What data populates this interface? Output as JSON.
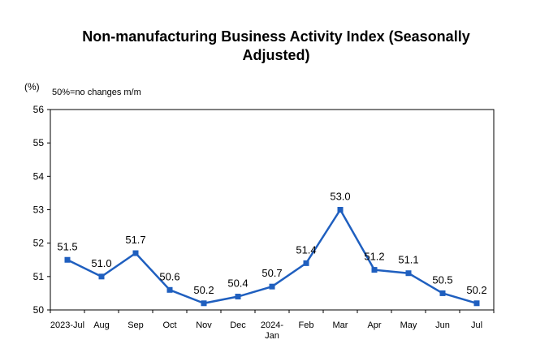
{
  "chart_data": {
    "type": "line",
    "title": "Non-manufacturing Business Activity Index (Seasonally Adjusted)",
    "ylabel": "(%)",
    "annotation": "50%=no changes m/m",
    "ylim": [
      50,
      56
    ],
    "yticks": [
      50,
      51,
      52,
      53,
      54,
      55,
      56
    ],
    "grid": false,
    "categories": [
      [
        "2023-Jul"
      ],
      [
        "Aug"
      ],
      [
        "Sep"
      ],
      [
        "Oct"
      ],
      [
        "Nov"
      ],
      [
        "Dec"
      ],
      [
        "2024-",
        "Jan"
      ],
      [
        "Feb"
      ],
      [
        "Mar"
      ],
      [
        "Apr"
      ],
      [
        "May"
      ],
      [
        "Jun"
      ],
      [
        "Jul"
      ]
    ],
    "series": [
      {
        "values": [
          51.5,
          51.0,
          51.7,
          50.6,
          50.2,
          50.4,
          50.7,
          51.4,
          53.0,
          51.2,
          51.1,
          50.5,
          50.2
        ],
        "labels": [
          "51.5",
          "51.0",
          "51.7",
          "50.6",
          "50.2",
          "50.4",
          "50.7",
          "51.4",
          "53.0",
          "51.2",
          "51.1",
          "50.5",
          "50.2"
        ],
        "color": "#1f5fbf"
      }
    ]
  }
}
